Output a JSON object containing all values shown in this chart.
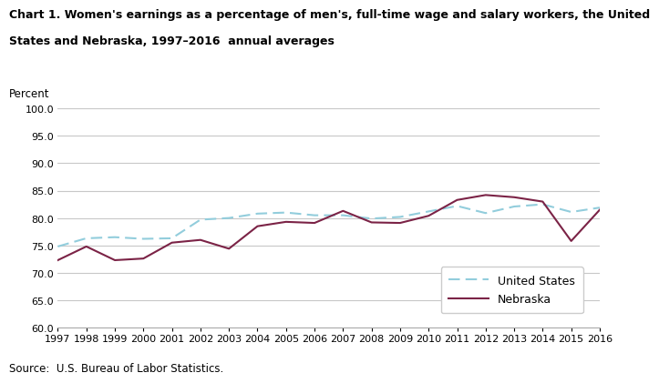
{
  "title_line1": "Chart 1. Women's earnings as a percentage of men's, full-time wage and salary workers, the United",
  "title_line2": "States and Nebraska, 1997–2016  annual averages",
  "ylabel": "Percent",
  "source": "Source:  U.S. Bureau of Labor Statistics.",
  "years": [
    1997,
    1998,
    1999,
    2000,
    2001,
    2002,
    2003,
    2004,
    2005,
    2006,
    2007,
    2008,
    2009,
    2010,
    2011,
    2012,
    2013,
    2014,
    2015,
    2016
  ],
  "us_data": [
    74.8,
    76.3,
    76.5,
    76.2,
    76.3,
    79.7,
    80.0,
    80.8,
    81.0,
    80.5,
    80.5,
    79.9,
    80.2,
    81.2,
    82.2,
    80.9,
    82.1,
    82.5,
    81.1,
    81.9
  ],
  "ne_data": [
    72.3,
    74.8,
    72.3,
    72.6,
    75.5,
    76.0,
    74.4,
    78.5,
    79.3,
    79.1,
    81.3,
    79.2,
    79.1,
    80.4,
    83.3,
    84.2,
    83.8,
    83.0,
    75.8,
    81.5
  ],
  "us_color": "#92CDDC",
  "ne_color": "#7B2346",
  "ylim": [
    60.0,
    100.0
  ],
  "yticks": [
    60.0,
    65.0,
    70.0,
    75.0,
    80.0,
    85.0,
    90.0,
    95.0,
    100.0
  ],
  "background_color": "#ffffff",
  "grid_color": "#c8c8c8",
  "title_fontsize": 9.0,
  "tick_fontsize": 8.0,
  "source_fontsize": 8.5,
  "legend_fontsize": 9.0,
  "percent_label_fontsize": 8.5
}
